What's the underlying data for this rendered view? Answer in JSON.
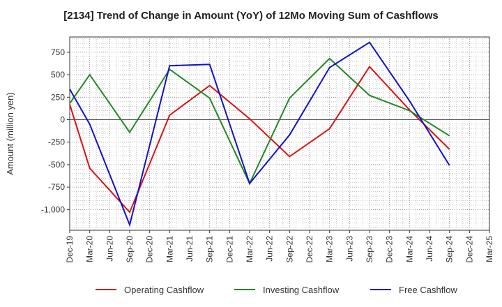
{
  "chart_data": {
    "type": "line",
    "title": "[2134]  Trend of Change in Amount (YoY) of 12Mo Moving Sum of Cashflows",
    "xlabel": "",
    "ylabel": "Amount (million yen)",
    "ylim": [
      -1230,
      920
    ],
    "yticks": [
      750,
      500,
      250,
      0,
      -250,
      -500,
      -750,
      -1000
    ],
    "ytick_labels": [
      "750",
      "500",
      "250",
      "0",
      "-250",
      "-500",
      "-750",
      "-1,000"
    ],
    "categories": [
      "Dec-19",
      "Mar-20",
      "Jun-20",
      "Sep-20",
      "Dec-20",
      "Mar-21",
      "Jun-21",
      "Sep-21",
      "Dec-21",
      "Mar-22",
      "Jun-22",
      "Sep-22",
      "Dec-22",
      "Mar-23",
      "Jun-23",
      "Sep-23",
      "Dec-23",
      "Mar-24",
      "Jun-24",
      "Sep-24",
      "Dec-24",
      "Mar-25"
    ],
    "x": [
      "Dec-19",
      "Mar-20",
      "Jun-20",
      "Sep-20",
      "Dec-20",
      "Mar-21",
      "Jun-21",
      "Sep-21",
      "Dec-21",
      "Mar-22",
      "Jun-22",
      "Sep-22",
      "Dec-22",
      "Mar-23",
      "Jun-23",
      "Sep-23",
      "Dec-23",
      "Mar-24",
      "Jun-24",
      "Sep-24",
      "Dec-24",
      "Mar-25"
    ],
    "grid": true,
    "legend_position": "bottom",
    "series": [
      {
        "name": "Operating Cashflow",
        "color": "#dd1111",
        "points": [
          [
            "Dec-19",
            170
          ],
          [
            "Mar-20",
            -540
          ],
          [
            "Sep-20",
            -1030
          ],
          [
            "Mar-21",
            50
          ],
          [
            "Sep-21",
            380
          ],
          [
            "Mar-22",
            10
          ],
          [
            "Sep-22",
            -410
          ],
          [
            "Mar-23",
            -100
          ],
          [
            "Sep-23",
            590
          ],
          [
            "Mar-24",
            110
          ],
          [
            "Sep-24",
            -330
          ]
        ]
      },
      {
        "name": "Investing Cashflow",
        "color": "#228822",
        "points": [
          [
            "Dec-19",
            180
          ],
          [
            "Mar-20",
            500
          ],
          [
            "Sep-20",
            -140
          ],
          [
            "Mar-21",
            560
          ],
          [
            "Sep-21",
            240
          ],
          [
            "Mar-22",
            -710
          ],
          [
            "Sep-22",
            240
          ],
          [
            "Mar-23",
            680
          ],
          [
            "Sep-23",
            270
          ],
          [
            "Mar-24",
            100
          ],
          [
            "Sep-24",
            -180
          ]
        ]
      },
      {
        "name": "Free Cashflow",
        "color": "#1111cc",
        "points": [
          [
            "Dec-19",
            340
          ],
          [
            "Mar-20",
            -50
          ],
          [
            "Sep-20",
            -1170
          ],
          [
            "Mar-21",
            600
          ],
          [
            "Sep-21",
            615
          ],
          [
            "Mar-22",
            -710
          ],
          [
            "Sep-22",
            -170
          ],
          [
            "Mar-23",
            580
          ],
          [
            "Sep-23",
            860
          ],
          [
            "Mar-24",
            210
          ],
          [
            "Sep-24",
            -510
          ]
        ]
      }
    ]
  }
}
